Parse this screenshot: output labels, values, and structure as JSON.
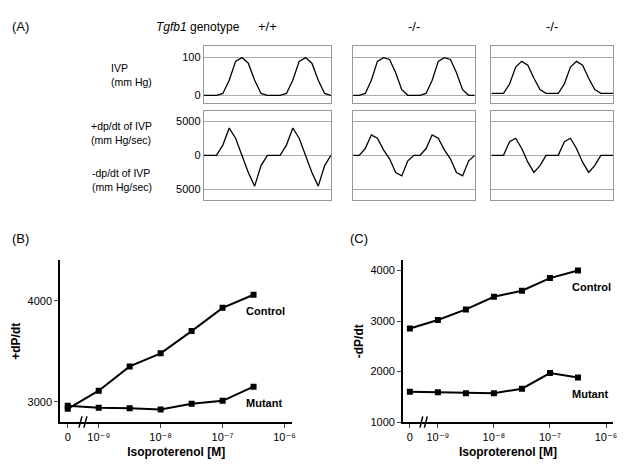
{
  "chart_data": [
    {
      "type": "line",
      "label": "(A)",
      "title": "Tgfb1 genotype",
      "color": "#000000",
      "grid": true,
      "tick_labels": "y",
      "x": [
        0,
        2,
        4,
        6,
        8,
        10,
        12,
        14,
        16,
        18,
        20,
        22,
        24,
        26,
        28,
        30,
        32,
        34,
        36,
        38,
        40
      ],
      "xlim": [
        0,
        40
      ],
      "rows": [
        {
          "label": [
            "IVP",
            "(mm Hg)"
          ],
          "ylim": [
            -20,
            130
          ],
          "yticks": [
            0,
            100
          ]
        },
        {
          "label": [
            "+dp/dt of IVP",
            "(mm Hg/sec)"
          ],
          "label2": [
            "-dp/dt of IVP",
            "(mm Hg/sec)"
          ],
          "ylim": [
            -6500,
            6500
          ],
          "yticks": [
            {
              "value": -5000,
              "label": "5000"
            },
            0,
            5000
          ]
        }
      ],
      "columns": [
        {
          "name": "+/+",
          "values": [
            [
              0,
              0,
              0,
              5,
              40,
              90,
              100,
              85,
              40,
              5,
              0,
              0,
              0,
              5,
              40,
              90,
              100,
              85,
              40,
              5,
              0
            ],
            [
              0,
              0,
              0,
              1500,
              4000,
              2500,
              0,
              -2500,
              -4500,
              -1500,
              0,
              0,
              0,
              1500,
              4000,
              2500,
              0,
              -2500,
              -4500,
              -1500,
              0
            ]
          ]
        },
        {
          "name": "-/-",
          "values": [
            [
              0,
              0,
              5,
              40,
              90,
              100,
              95,
              60,
              15,
              0,
              0,
              0,
              5,
              40,
              90,
              100,
              95,
              60,
              15,
              0,
              0
            ],
            [
              0,
              0,
              1000,
              3000,
              2500,
              800,
              -500,
              -2500,
              -3000,
              -800,
              0,
              0,
              1000,
              3000,
              2500,
              800,
              -500,
              -2500,
              -3000,
              -800,
              0
            ]
          ]
        },
        {
          "name": "-/-",
          "values": [
            [
              5,
              5,
              5,
              30,
              75,
              90,
              80,
              45,
              15,
              5,
              5,
              5,
              30,
              75,
              90,
              80,
              45,
              15,
              5,
              5,
              5
            ],
            [
              0,
              0,
              0,
              2000,
              2500,
              1000,
              -1000,
              -2500,
              -1500,
              0,
              0,
              0,
              2000,
              2500,
              1000,
              -1000,
              -2500,
              -1500,
              0,
              0,
              0
            ]
          ]
        }
      ]
    },
    {
      "type": "line",
      "label": "(B)",
      "xlabel": "Isoproterenol [M]",
      "ylabel": "+dP/dt",
      "grid": false,
      "categories": [
        "0",
        "10⁻⁹",
        null,
        "10⁻⁸",
        null,
        "10⁻⁷",
        null,
        "10⁻⁶"
      ],
      "ylim": [
        2800,
        4400
      ],
      "yticks": [
        3000,
        4000
      ],
      "series": [
        {
          "name": "Control",
          "color": "#000000",
          "marker": "square",
          "values": [
            2930,
            3110,
            3350,
            3480,
            3700,
            3930,
            4060,
            null
          ]
        },
        {
          "name": "Mutant",
          "color": "#000000",
          "marker": "square",
          "values": [
            2960,
            2940,
            2935,
            2925,
            2980,
            3010,
            3150,
            null
          ]
        }
      ]
    },
    {
      "type": "line",
      "label": "(C)",
      "xlabel": "Isoproterenol [M]",
      "ylabel": "-dP/dt",
      "grid": false,
      "categories": [
        "0",
        "10⁻⁹",
        null,
        "10⁻⁸",
        null,
        "10⁻⁷",
        null,
        "10⁻⁶"
      ],
      "ylim": [
        1000,
        4200
      ],
      "yticks": [
        1000,
        2000,
        3000,
        4000
      ],
      "series": [
        {
          "name": "Control",
          "color": "#000000",
          "marker": "square",
          "values": [
            2850,
            3020,
            3230,
            3480,
            3600,
            3850,
            4000,
            null
          ]
        },
        {
          "name": "Mutant",
          "color": "#000000",
          "marker": "square",
          "values": [
            1600,
            1590,
            1570,
            1570,
            1660,
            1970,
            1880,
            null
          ]
        }
      ]
    }
  ]
}
